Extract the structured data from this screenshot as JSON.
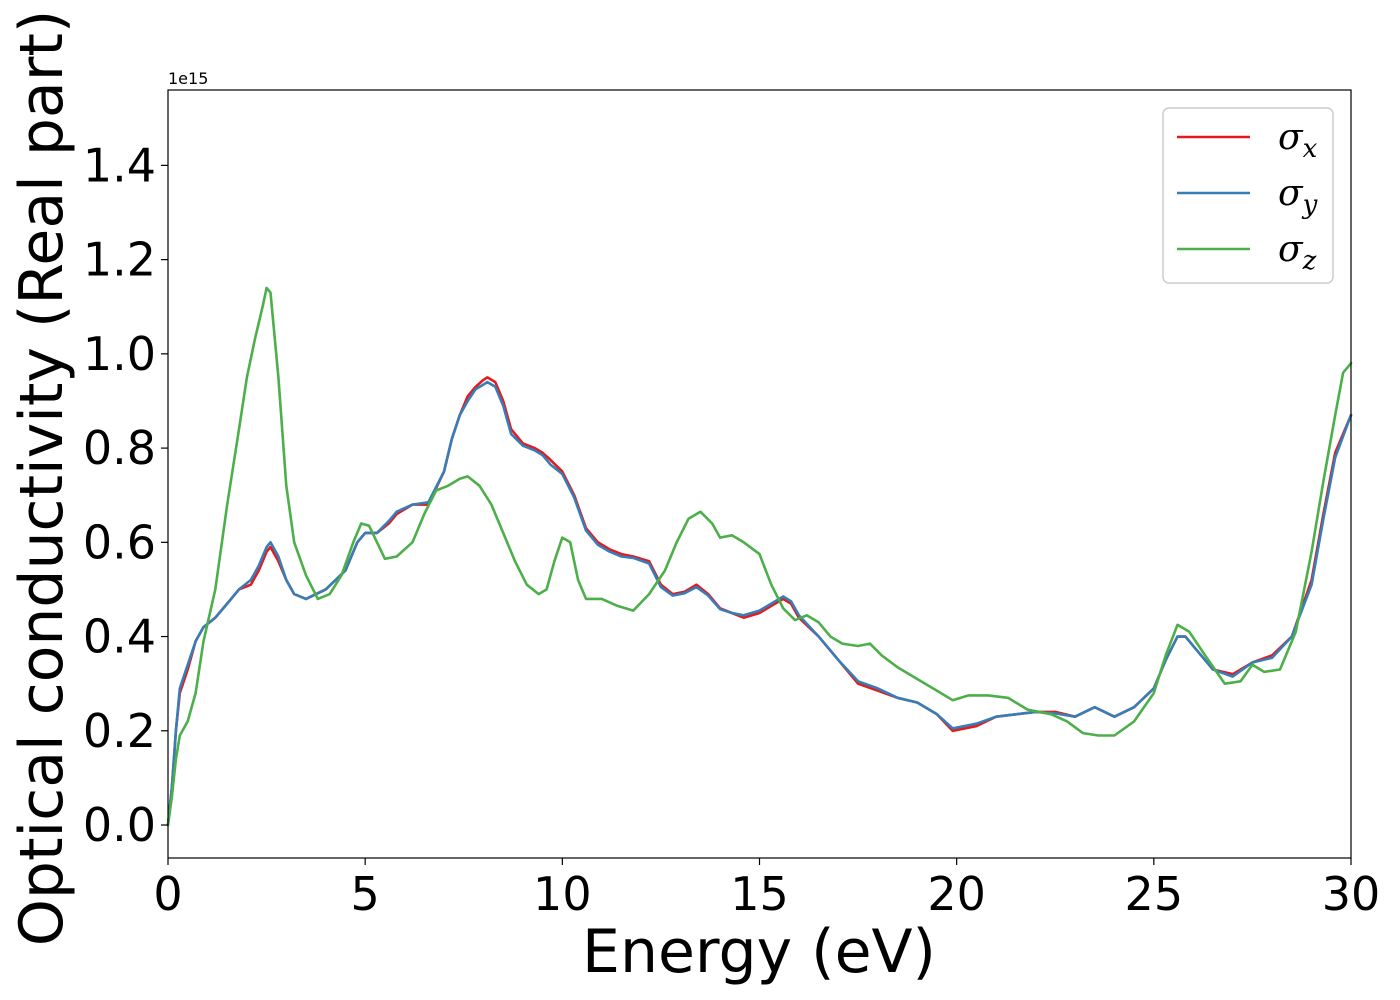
{
  "chart_data": {
    "type": "line",
    "title": "",
    "xlabel": "Energy (eV)",
    "ylabel": "Optical conductivity (Real part)",
    "y_offset_label": "1e15",
    "xlim": [
      0,
      30
    ],
    "ylim": [
      -0.07,
      1.56
    ],
    "x_ticks": [
      0,
      5,
      10,
      15,
      20,
      25,
      30
    ],
    "x_tick_labels": [
      "0",
      "5",
      "10",
      "15",
      "20",
      "25",
      "30"
    ],
    "y_ticks": [
      0.0,
      0.2,
      0.4,
      0.6,
      0.8,
      1.0,
      1.2,
      1.4
    ],
    "y_tick_labels": [
      "0.0",
      "0.2",
      "0.4",
      "0.6",
      "0.8",
      "1.0",
      "1.2",
      "1.4"
    ],
    "grid": false,
    "legend_position": "top-right",
    "series": [
      {
        "name": "σx",
        "symbol": "σ",
        "subscript": "x",
        "color": "#e41a1c",
        "points": [
          [
            0,
            0.0
          ],
          [
            0.1,
            0.08
          ],
          [
            0.2,
            0.2
          ],
          [
            0.3,
            0.28
          ],
          [
            0.5,
            0.33
          ],
          [
            0.7,
            0.39
          ],
          [
            0.9,
            0.42
          ],
          [
            1.2,
            0.44
          ],
          [
            1.5,
            0.47
          ],
          [
            1.8,
            0.5
          ],
          [
            2.1,
            0.51
          ],
          [
            2.3,
            0.54
          ],
          [
            2.5,
            0.58
          ],
          [
            2.6,
            0.59
          ],
          [
            2.8,
            0.56
          ],
          [
            3.0,
            0.52
          ],
          [
            3.2,
            0.49
          ],
          [
            3.5,
            0.48
          ],
          [
            4.0,
            0.5
          ],
          [
            4.5,
            0.54
          ],
          [
            4.8,
            0.6
          ],
          [
            5.0,
            0.62
          ],
          [
            5.3,
            0.62
          ],
          [
            5.6,
            0.64
          ],
          [
            5.8,
            0.66
          ],
          [
            6.2,
            0.68
          ],
          [
            6.6,
            0.68
          ],
          [
            7.0,
            0.75
          ],
          [
            7.2,
            0.82
          ],
          [
            7.4,
            0.87
          ],
          [
            7.6,
            0.91
          ],
          [
            7.8,
            0.93
          ],
          [
            8.0,
            0.945
          ],
          [
            8.1,
            0.95
          ],
          [
            8.3,
            0.94
          ],
          [
            8.5,
            0.9
          ],
          [
            8.7,
            0.84
          ],
          [
            9.0,
            0.81
          ],
          [
            9.3,
            0.8
          ],
          [
            9.5,
            0.79
          ],
          [
            9.7,
            0.775
          ],
          [
            10.0,
            0.75
          ],
          [
            10.3,
            0.7
          ],
          [
            10.6,
            0.63
          ],
          [
            10.9,
            0.6
          ],
          [
            11.2,
            0.585
          ],
          [
            11.5,
            0.575
          ],
          [
            11.8,
            0.57
          ],
          [
            12.2,
            0.56
          ],
          [
            12.5,
            0.51
          ],
          [
            12.8,
            0.49
          ],
          [
            13.1,
            0.495
          ],
          [
            13.4,
            0.51
          ],
          [
            13.7,
            0.49
          ],
          [
            14.0,
            0.46
          ],
          [
            14.3,
            0.45
          ],
          [
            14.6,
            0.44
          ],
          [
            15.0,
            0.45
          ],
          [
            15.3,
            0.465
          ],
          [
            15.6,
            0.48
          ],
          [
            15.8,
            0.47
          ],
          [
            16.0,
            0.44
          ],
          [
            16.5,
            0.4
          ],
          [
            17.0,
            0.35
          ],
          [
            17.5,
            0.3
          ],
          [
            18.0,
            0.285
          ],
          [
            18.5,
            0.27
          ],
          [
            19.0,
            0.26
          ],
          [
            19.5,
            0.235
          ],
          [
            19.9,
            0.2
          ],
          [
            20.5,
            0.21
          ],
          [
            21.0,
            0.23
          ],
          [
            21.5,
            0.235
          ],
          [
            22.0,
            0.24
          ],
          [
            22.5,
            0.24
          ],
          [
            23.0,
            0.23
          ],
          [
            23.5,
            0.25
          ],
          [
            24.0,
            0.23
          ],
          [
            24.5,
            0.25
          ],
          [
            25.0,
            0.29
          ],
          [
            25.3,
            0.35
          ],
          [
            25.6,
            0.4
          ],
          [
            25.8,
            0.4
          ],
          [
            26.1,
            0.37
          ],
          [
            26.5,
            0.33
          ],
          [
            27.0,
            0.32
          ],
          [
            27.5,
            0.345
          ],
          [
            28.0,
            0.36
          ],
          [
            28.5,
            0.4
          ],
          [
            29.0,
            0.52
          ],
          [
            29.3,
            0.66
          ],
          [
            29.6,
            0.79
          ],
          [
            30.0,
            0.87
          ]
        ]
      },
      {
        "name": "σy",
        "symbol": "σ",
        "subscript": "y",
        "color": "#377eb8",
        "points": [
          [
            0,
            0.0
          ],
          [
            0.1,
            0.08
          ],
          [
            0.2,
            0.2
          ],
          [
            0.3,
            0.29
          ],
          [
            0.5,
            0.34
          ],
          [
            0.7,
            0.39
          ],
          [
            0.9,
            0.42
          ],
          [
            1.2,
            0.44
          ],
          [
            1.5,
            0.47
          ],
          [
            1.8,
            0.5
          ],
          [
            2.1,
            0.52
          ],
          [
            2.3,
            0.55
          ],
          [
            2.5,
            0.59
          ],
          [
            2.6,
            0.6
          ],
          [
            2.8,
            0.57
          ],
          [
            3.0,
            0.52
          ],
          [
            3.2,
            0.49
          ],
          [
            3.5,
            0.48
          ],
          [
            4.0,
            0.5
          ],
          [
            4.5,
            0.54
          ],
          [
            4.8,
            0.6
          ],
          [
            5.0,
            0.62
          ],
          [
            5.3,
            0.62
          ],
          [
            5.6,
            0.645
          ],
          [
            5.8,
            0.665
          ],
          [
            6.2,
            0.68
          ],
          [
            6.6,
            0.685
          ],
          [
            7.0,
            0.75
          ],
          [
            7.2,
            0.82
          ],
          [
            7.4,
            0.87
          ],
          [
            7.6,
            0.9
          ],
          [
            7.8,
            0.925
          ],
          [
            8.0,
            0.935
          ],
          [
            8.1,
            0.94
          ],
          [
            8.3,
            0.93
          ],
          [
            8.5,
            0.89
          ],
          [
            8.7,
            0.83
          ],
          [
            9.0,
            0.805
          ],
          [
            9.3,
            0.795
          ],
          [
            9.5,
            0.785
          ],
          [
            9.7,
            0.765
          ],
          [
            10.0,
            0.745
          ],
          [
            10.3,
            0.695
          ],
          [
            10.6,
            0.625
          ],
          [
            10.9,
            0.595
          ],
          [
            11.2,
            0.58
          ],
          [
            11.5,
            0.57
          ],
          [
            11.8,
            0.567
          ],
          [
            12.2,
            0.555
          ],
          [
            12.5,
            0.505
          ],
          [
            12.8,
            0.487
          ],
          [
            13.1,
            0.492
          ],
          [
            13.4,
            0.505
          ],
          [
            13.7,
            0.487
          ],
          [
            14.0,
            0.458
          ],
          [
            14.3,
            0.45
          ],
          [
            14.6,
            0.445
          ],
          [
            15.0,
            0.455
          ],
          [
            15.3,
            0.47
          ],
          [
            15.6,
            0.485
          ],
          [
            15.8,
            0.475
          ],
          [
            16.0,
            0.445
          ],
          [
            16.5,
            0.4
          ],
          [
            17.0,
            0.35
          ],
          [
            17.5,
            0.305
          ],
          [
            18.0,
            0.29
          ],
          [
            18.5,
            0.27
          ],
          [
            19.0,
            0.26
          ],
          [
            19.5,
            0.235
          ],
          [
            19.9,
            0.205
          ],
          [
            20.5,
            0.215
          ],
          [
            21.0,
            0.23
          ],
          [
            21.5,
            0.235
          ],
          [
            22.0,
            0.24
          ],
          [
            22.5,
            0.237
          ],
          [
            23.0,
            0.23
          ],
          [
            23.5,
            0.25
          ],
          [
            24.0,
            0.23
          ],
          [
            24.5,
            0.25
          ],
          [
            25.0,
            0.29
          ],
          [
            25.3,
            0.35
          ],
          [
            25.6,
            0.4
          ],
          [
            25.8,
            0.4
          ],
          [
            26.1,
            0.37
          ],
          [
            26.5,
            0.33
          ],
          [
            27.0,
            0.315
          ],
          [
            27.5,
            0.345
          ],
          [
            28.0,
            0.355
          ],
          [
            28.5,
            0.4
          ],
          [
            29.0,
            0.51
          ],
          [
            29.3,
            0.65
          ],
          [
            29.6,
            0.78
          ],
          [
            30.0,
            0.87
          ]
        ]
      },
      {
        "name": "σz",
        "symbol": "σ",
        "subscript": "z",
        "color": "#4daf4a",
        "points": [
          [
            0,
            0.0
          ],
          [
            0.1,
            0.06
          ],
          [
            0.2,
            0.14
          ],
          [
            0.3,
            0.19
          ],
          [
            0.5,
            0.22
          ],
          [
            0.7,
            0.28
          ],
          [
            0.9,
            0.39
          ],
          [
            1.2,
            0.5
          ],
          [
            1.5,
            0.68
          ],
          [
            1.8,
            0.84
          ],
          [
            2.0,
            0.95
          ],
          [
            2.2,
            1.03
          ],
          [
            2.4,
            1.1
          ],
          [
            2.5,
            1.14
          ],
          [
            2.6,
            1.13
          ],
          [
            2.8,
            0.95
          ],
          [
            3.0,
            0.72
          ],
          [
            3.2,
            0.6
          ],
          [
            3.5,
            0.53
          ],
          [
            3.8,
            0.48
          ],
          [
            4.1,
            0.49
          ],
          [
            4.4,
            0.53
          ],
          [
            4.7,
            0.6
          ],
          [
            4.9,
            0.64
          ],
          [
            5.1,
            0.635
          ],
          [
            5.3,
            0.6
          ],
          [
            5.5,
            0.565
          ],
          [
            5.8,
            0.57
          ],
          [
            6.2,
            0.6
          ],
          [
            6.5,
            0.66
          ],
          [
            6.8,
            0.71
          ],
          [
            7.1,
            0.72
          ],
          [
            7.4,
            0.735
          ],
          [
            7.6,
            0.74
          ],
          [
            7.9,
            0.72
          ],
          [
            8.2,
            0.68
          ],
          [
            8.5,
            0.62
          ],
          [
            8.8,
            0.56
          ],
          [
            9.1,
            0.51
          ],
          [
            9.4,
            0.49
          ],
          [
            9.6,
            0.5
          ],
          [
            9.8,
            0.56
          ],
          [
            10.0,
            0.61
          ],
          [
            10.2,
            0.6
          ],
          [
            10.4,
            0.52
          ],
          [
            10.6,
            0.48
          ],
          [
            11.0,
            0.48
          ],
          [
            11.4,
            0.465
          ],
          [
            11.8,
            0.455
          ],
          [
            12.2,
            0.49
          ],
          [
            12.6,
            0.54
          ],
          [
            12.9,
            0.6
          ],
          [
            13.2,
            0.65
          ],
          [
            13.5,
            0.665
          ],
          [
            13.8,
            0.64
          ],
          [
            14.0,
            0.61
          ],
          [
            14.3,
            0.615
          ],
          [
            14.6,
            0.6
          ],
          [
            15.0,
            0.575
          ],
          [
            15.3,
            0.51
          ],
          [
            15.6,
            0.46
          ],
          [
            15.9,
            0.435
          ],
          [
            16.2,
            0.445
          ],
          [
            16.5,
            0.43
          ],
          [
            16.8,
            0.4
          ],
          [
            17.1,
            0.385
          ],
          [
            17.5,
            0.38
          ],
          [
            17.8,
            0.385
          ],
          [
            18.1,
            0.36
          ],
          [
            18.5,
            0.335
          ],
          [
            19.0,
            0.31
          ],
          [
            19.5,
            0.285
          ],
          [
            19.9,
            0.265
          ],
          [
            20.3,
            0.275
          ],
          [
            20.8,
            0.275
          ],
          [
            21.3,
            0.27
          ],
          [
            21.8,
            0.245
          ],
          [
            22.4,
            0.235
          ],
          [
            22.8,
            0.22
          ],
          [
            23.2,
            0.195
          ],
          [
            23.6,
            0.19
          ],
          [
            24.0,
            0.19
          ],
          [
            24.5,
            0.22
          ],
          [
            25.0,
            0.28
          ],
          [
            25.3,
            0.36
          ],
          [
            25.6,
            0.425
          ],
          [
            25.9,
            0.41
          ],
          [
            26.3,
            0.36
          ],
          [
            26.8,
            0.3
          ],
          [
            27.2,
            0.305
          ],
          [
            27.5,
            0.34
          ],
          [
            27.8,
            0.325
          ],
          [
            28.2,
            0.33
          ],
          [
            28.6,
            0.41
          ],
          [
            29.0,
            0.58
          ],
          [
            29.3,
            0.73
          ],
          [
            29.6,
            0.87
          ],
          [
            29.8,
            0.96
          ],
          [
            30.0,
            0.98
          ]
        ]
      }
    ]
  }
}
